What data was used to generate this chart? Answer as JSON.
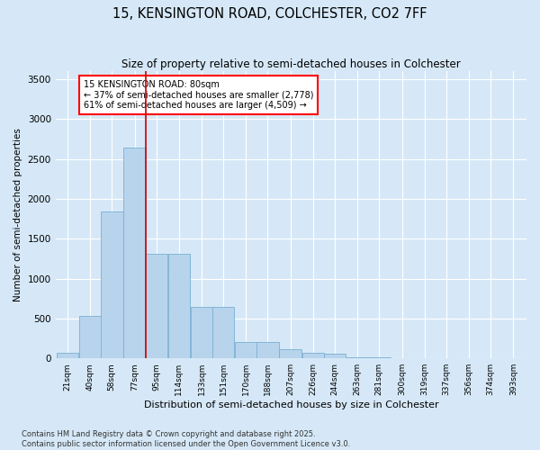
{
  "title_line1": "15, KENSINGTON ROAD, COLCHESTER, CO2 7FF",
  "title_line2": "Size of property relative to semi-detached houses in Colchester",
  "xlabel": "Distribution of semi-detached houses by size in Colchester",
  "ylabel": "Number of semi-detached properties",
  "footnote": "Contains HM Land Registry data © Crown copyright and database right 2025.\nContains public sector information licensed under the Open Government Licence v3.0.",
  "annotation_title": "15 KENSINGTON ROAD: 80sqm",
  "annotation_line2": "← 37% of semi-detached houses are smaller (2,778)",
  "annotation_line3": "61% of semi-detached houses are larger (4,509) →",
  "bar_color": "#b8d4ec",
  "bar_edge_color": "#7aafd4",
  "redline_color": "#cc0000",
  "background_color": "#d6e8f7",
  "categories": [
    21,
    40,
    58,
    77,
    95,
    114,
    133,
    151,
    170,
    188,
    207,
    226,
    244,
    263,
    281,
    300,
    319,
    337,
    356,
    374,
    393
  ],
  "category_labels": [
    "21sqm",
    "40sqm",
    "58sqm",
    "77sqm",
    "95sqm",
    "114sqm",
    "133sqm",
    "151sqm",
    "170sqm",
    "188sqm",
    "207sqm",
    "226sqm",
    "244sqm",
    "263sqm",
    "281sqm",
    "300sqm",
    "319sqm",
    "337sqm",
    "356sqm",
    "374sqm",
    "393sqm"
  ],
  "values": [
    75,
    530,
    1840,
    2640,
    1310,
    1310,
    650,
    650,
    200,
    200,
    110,
    65,
    55,
    10,
    10,
    5,
    5,
    5,
    5,
    5,
    5
  ],
  "ylim": [
    0,
    3600
  ],
  "yticks": [
    0,
    500,
    1000,
    1500,
    2000,
    2500,
    3000,
    3500
  ],
  "bin_width": 18.5,
  "redline_x": 86,
  "xlim_left": 11,
  "xlim_right": 404
}
